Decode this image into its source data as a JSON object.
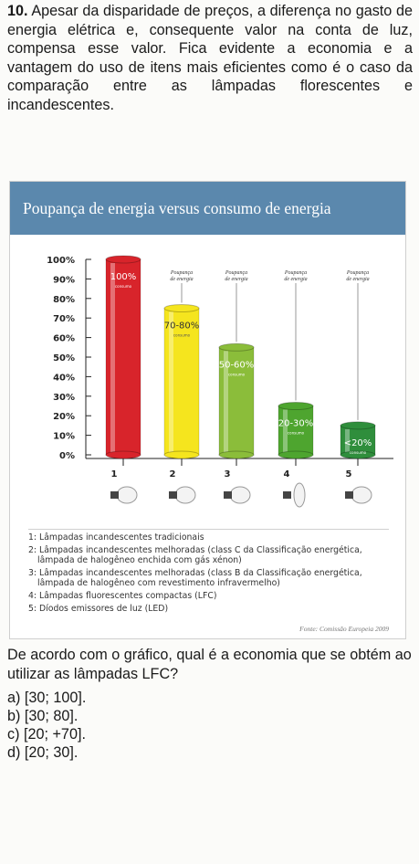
{
  "question": {
    "number": "10.",
    "text": "Apesar da disparidade de preços, a diferença no gasto de energia elétrica e, consequente valor na conta de luz, compensa esse valor. Fica evidente a economia e a vantagem do uso de itens mais eficientes como é o caso da comparação entre as lâmpadas florescentes e incandescentes."
  },
  "figure": {
    "title": "Poupança de energia versus consumo de energia",
    "source": "Fonte: Comissão Europeia 2009",
    "legend": [
      {
        "num": "1:",
        "text": "Lâmpadas incandescentes tradicionais",
        "sub": ""
      },
      {
        "num": "2:",
        "text": "Lâmpadas incandescentes melhoradas (class C da Classificação energética,",
        "sub": "lâmpada de halogêneo enchida com gás xénon)"
      },
      {
        "num": "3:",
        "text": "Lâmpadas incandescentes melhoradas (class B da Classificação energética,",
        "sub": "lâmpada de halogêneo com revestimento infravermelho)"
      },
      {
        "num": "4:",
        "text": "Lâmpadas fluorescentes compactas (LFC)",
        "sub": ""
      },
      {
        "num": "5:",
        "text": "Díodos emissores de luz (LED)",
        "sub": ""
      }
    ]
  },
  "chart_data": {
    "type": "bar",
    "title": "Poupança de energia versus consumo de energia",
    "ylim": [
      0,
      100
    ],
    "y_ticks": [
      "0%",
      "10%",
      "20%",
      "30%",
      "40%",
      "50%",
      "60%",
      "70%",
      "80%",
      "90%",
      "100%"
    ],
    "categories": [
      "1",
      "2",
      "3",
      "4",
      "5"
    ],
    "values": [
      100,
      75,
      55,
      25,
      15
    ],
    "bar_labels": [
      "100%",
      "70-80%",
      "50-60%",
      "20-30%",
      "<20%"
    ],
    "bar_sublabels": [
      "consumo",
      "consumo",
      "consumo",
      "consumo",
      "consumo"
    ],
    "savings_labels": [
      "",
      "Poupança de energia",
      "Poupança de energia",
      "Poupança de energia",
      "Poupança de energia"
    ],
    "colors": [
      "#d8242b",
      "#f5e51e",
      "#8bbd3a",
      "#4ea52f",
      "#2f8e3c"
    ],
    "grid": false
  },
  "prompt": "De acordo com o gráfico, qual é a economia que se obtém ao utilizar as lâmpadas LFC?",
  "options": [
    {
      "letter": "a)",
      "text": "[30; 100]."
    },
    {
      "letter": "b)",
      "text": "[30; 80]."
    },
    {
      "letter": "c)",
      "text": "[20; +70]."
    },
    {
      "letter": "d)",
      "text": "[20; 30]."
    }
  ]
}
